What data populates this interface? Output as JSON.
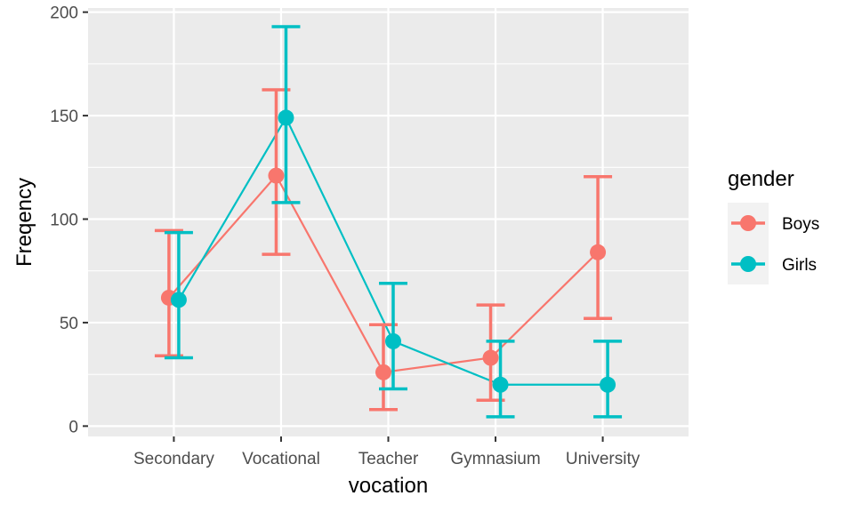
{
  "chart_data": {
    "type": "line",
    "xlabel": "vocation",
    "ylabel": "Freqency",
    "categories": [
      "Secondary",
      "Vocational",
      "Teacher",
      "Gymnasium",
      "University"
    ],
    "ylim": [
      -5,
      202
    ],
    "yticks": [
      0,
      50,
      100,
      150,
      200
    ],
    "grid": true,
    "legend": {
      "title": "gender",
      "position": "right"
    },
    "series": [
      {
        "name": "Boys",
        "color": "#F8766D",
        "values": [
          62,
          121,
          26,
          33,
          84
        ],
        "lower": [
          34,
          83,
          8,
          12.5,
          52
        ],
        "upper": [
          94.5,
          162.5,
          49,
          58.5,
          120.5
        ]
      },
      {
        "name": "Girls",
        "color": "#00BFC4",
        "values": [
          61,
          149,
          41,
          20,
          20
        ],
        "lower": [
          33,
          108,
          18,
          4.5,
          4.5
        ],
        "upper": [
          93.5,
          193,
          69,
          41,
          41
        ]
      }
    ]
  }
}
